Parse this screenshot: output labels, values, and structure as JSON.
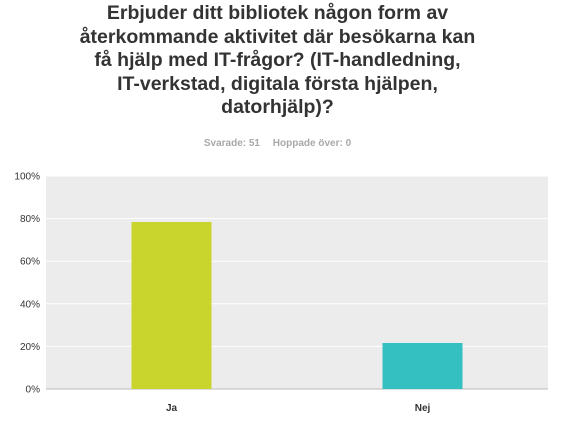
{
  "question": {
    "lines": [
      "Erbjuder ditt bibliotek någon form av",
      "återkommande aktivitet där besökarna kan",
      "få hjälp med IT-frågor? (IT-handledning,",
      "IT-verkstad, digitala första hjälpen,",
      "datorhjälp)?"
    ]
  },
  "meta": {
    "answered": "Svarade: 51",
    "skipped": "Hoppade över: 0"
  },
  "chart_data": {
    "type": "bar",
    "categories": [
      "Ja",
      "Nej"
    ],
    "values": [
      78.4,
      21.6
    ],
    "colors": [
      "#c9d52d",
      "#34bfc0"
    ],
    "ylim": [
      0,
      100
    ],
    "yticks": [
      0,
      20,
      40,
      60,
      80,
      100
    ],
    "ytick_labels": [
      "0%",
      "20%",
      "40%",
      "60%",
      "80%",
      "100%"
    ],
    "grid": true,
    "plot_background": "#ececec"
  }
}
